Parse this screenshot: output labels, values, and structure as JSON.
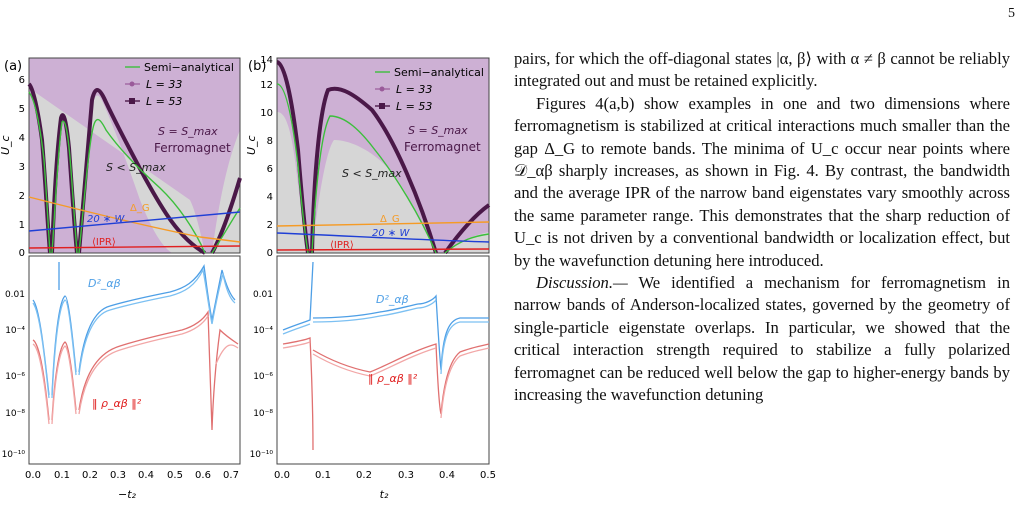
{
  "page_number": "5",
  "figure": {
    "panel_a": {
      "label": "(a)",
      "y_axis_label": "U_c",
      "x_axis_label": "−t₂",
      "legend": [
        "Semi−analytical",
        "L = 33",
        "L = 53"
      ],
      "region_labels": {
        "s_max": "S = S_max",
        "ferro": "Ferromagnet",
        "s_less": "S < S_max"
      },
      "curve_labels": {
        "delta_g": "Δ_G",
        "bandwidth": "20 ∗ W",
        "ipr": "⟨IPR⟩",
        "d2": "D²_αβ",
        "rho": "‖ ρ_αβ ‖²"
      },
      "upper_y_ticks": [
        "0",
        "1",
        "2",
        "3",
        "4",
        "5",
        "6"
      ],
      "lower_y_ticks": [
        "0.01",
        "10⁻⁴",
        "10⁻⁶",
        "10⁻⁸",
        "10⁻¹⁰"
      ],
      "x_ticks": [
        "0.0",
        "0.1",
        "0.2",
        "0.3",
        "0.4",
        "0.5",
        "0.6",
        "0.7"
      ]
    },
    "panel_b": {
      "label": "(b)",
      "y_axis_label": "U_c",
      "x_axis_label": "t₂",
      "legend": [
        "Semi−analytical",
        "L = 33",
        "L = 53"
      ],
      "region_labels": {
        "s_max": "S = S_max",
        "ferro": "Ferromagnet",
        "s_less": "S < S_max"
      },
      "curve_labels": {
        "delta_g": "Δ_G",
        "bandwidth": "20 ∗ W",
        "ipr": "⟨IPR⟩",
        "d2": "D²_αβ",
        "rho": "‖ ρ_αβ ‖²"
      },
      "upper_y_ticks": [
        "0",
        "2",
        "4",
        "6",
        "8",
        "10",
        "12",
        "14"
      ],
      "lower_y_ticks": [
        "0.01",
        "10⁻⁴",
        "10⁻⁶",
        "10⁻⁸",
        "10⁻¹⁰"
      ],
      "x_ticks": [
        "0.0",
        "0.1",
        "0.2",
        "0.3",
        "0.4",
        "0.5"
      ]
    }
  },
  "text": {
    "p1": "pairs, for which the off-diagonal states |α, β⟩ with α ≠ β cannot be reliably integrated out and must be retained explicitly.",
    "p2": "Figures 4(a,b) show examples in one and two dimensions where ferromagnetism is stabilized at critical interactions much smaller than the gap Δ_G to remote bands. The minima of U_c occur near points where 𝒟_αβ sharply increases, as shown in Fig. 4. By contrast, the bandwidth and the average IPR of the narrow band eigenstates vary smoothly across the same parameter range. This demonstrates that the sharp reduction of U_c is not driven by a conventional bandwidth or localization effect, but by the wavefunction detuning here introduced.",
    "p3_head": "Discussion.—",
    "p3_body": " We identified a mechanism for ferromagnetism in narrow bands of Anderson-localized states, governed by the geometry of single-particle eigenstate overlaps. In particular, we showed that the critical interaction strength required to stabilize a fully polarized ferromagnet can be reduced well below the gap to higher-energy bands by increasing the wavefunction detuning"
  }
}
